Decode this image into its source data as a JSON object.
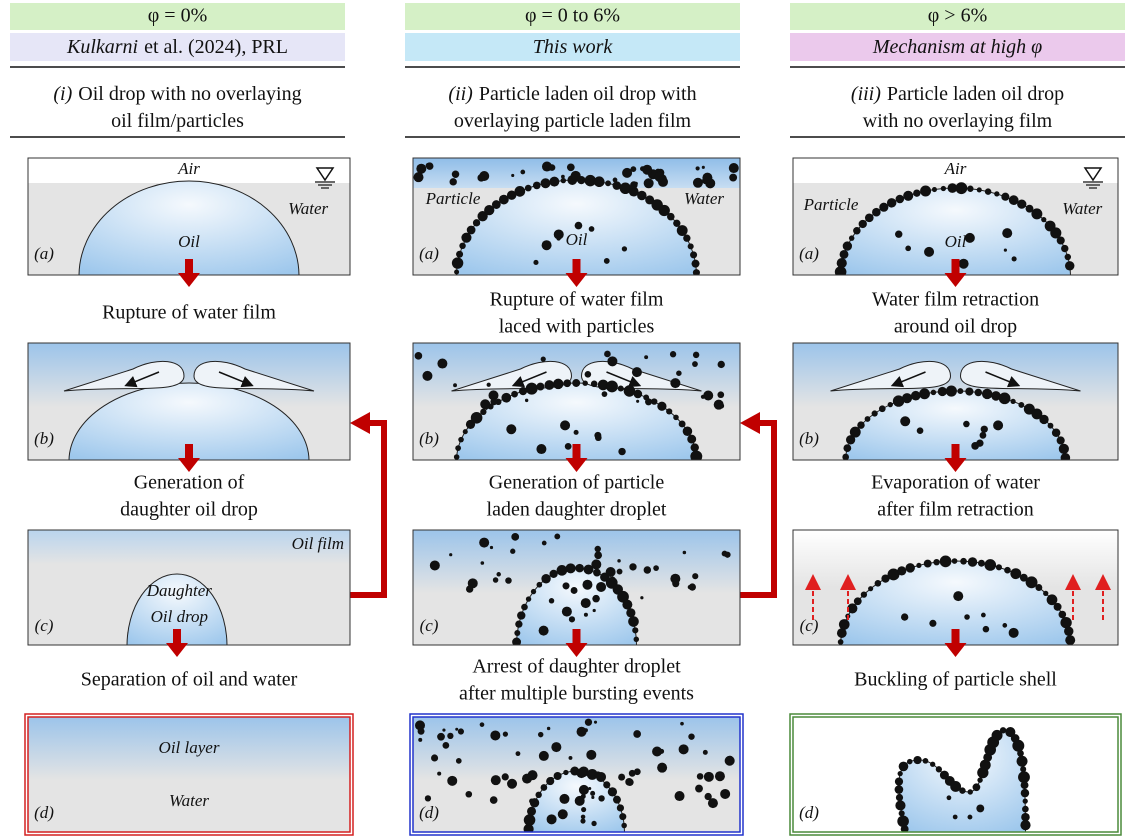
{
  "columns": [
    {
      "phi": "φ = 0%",
      "source": [
        {
          "text": "Kulkarni",
          "italic": true
        },
        {
          "text": "et al. (2024), PRL",
          "italic": false
        }
      ],
      "heading": {
        "numeral": "(i)",
        "lines": [
          "Oil drop with no overlaying",
          "oil film/particles"
        ]
      },
      "panels": [
        {
          "labels": [
            "Air",
            "Water",
            "Oil",
            "(a)"
          ]
        },
        {
          "labels": [
            "(b)"
          ]
        },
        {
          "labels": [
            "Oil film",
            "Daughter",
            "Oil drop",
            "(c)"
          ]
        },
        {
          "labels": [
            "Oil layer",
            "Water",
            "(d)"
          ]
        }
      ],
      "captions": [
        [
          "Rupture of water film"
        ],
        [
          "Generation of",
          "daughter oil drop"
        ],
        [
          "Separation of oil and water"
        ]
      ]
    },
    {
      "phi": "φ = 0 to 6%",
      "source": [
        {
          "text": "This work",
          "italic": true
        }
      ],
      "heading": {
        "numeral": "(ii)",
        "lines": [
          "Particle laden oil drop with",
          "overlaying particle laden film"
        ]
      },
      "panels": [
        {
          "labels": [
            "Particle",
            "Water",
            "Oil",
            "(a)"
          ]
        },
        {
          "labels": [
            "(b)"
          ]
        },
        {
          "labels": [
            "(c)"
          ]
        },
        {
          "labels": [
            "(d)"
          ]
        }
      ],
      "captions": [
        [
          "Rupture of water film",
          "laced with particles"
        ],
        [
          "Generation of particle",
          "laden daughter droplet"
        ],
        [
          "Arrest of daughter droplet",
          "after multiple bursting events"
        ]
      ]
    },
    {
      "phi": "φ > 6%",
      "source": [
        {
          "text": "Mechanism at high φ",
          "italic": true
        }
      ],
      "heading": {
        "numeral": "(iii)",
        "lines": [
          "Particle laden oil drop",
          "with no overlaying film"
        ]
      },
      "panels": [
        {
          "labels": [
            "Air",
            "Particle",
            "Water",
            "Oil",
            "(a)"
          ]
        },
        {
          "labels": [
            "(b)"
          ]
        },
        {
          "labels": [
            "(c)"
          ]
        },
        {
          "labels": [
            "(d)"
          ]
        }
      ],
      "captions": [
        [
          "Water film retraction",
          "around oil drop"
        ],
        [
          "Evaporation of water",
          "after film retraction"
        ],
        [
          "Buckling of particle shell"
        ]
      ]
    }
  ]
}
